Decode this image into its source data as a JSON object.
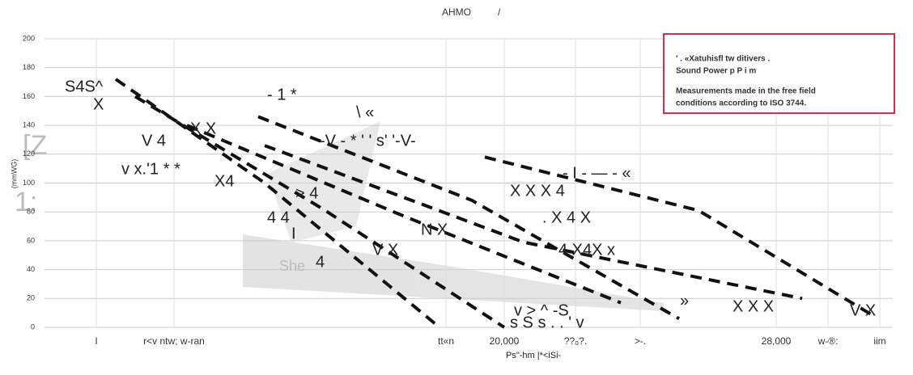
{
  "chart_data": {
    "type": "line",
    "title": "AHMO",
    "subtitle": "/",
    "y_label": "(mmWG)",
    "side_labels": [
      "[Z",
      "1:"
    ],
    "box_lines": [
      "' . «Xatuhisfl tw ditivers .",
      "Sound Power p P i m",
      "Measurements made in the free field",
      "conditions according to ISO 3744."
    ],
    "annotations": [
      "S4S^",
      "X",
      "V 4",
      "X X",
      "v x.'1 * *",
      "X4",
      "> 4",
      "4 4",
      "She",
      "4",
      "V X",
      "N X",
      "X X X 4",
      ". X 4 X",
      "4 X4X x",
      "- I - — - «",
      "v > ^ -S",
      "s S s . . ' v",
      "X X X",
      "V X",
      "-V - * ' ' s' '-V-",
      "\\ «",
      "- 1 *",
      "I",
      "Ps\"-hm |*<iSi-",
      "»"
    ],
    "xlim": [
      0,
      13.1
    ],
    "xticks": [
      {
        "value": 0.8,
        "label": "I"
      },
      {
        "value": 2,
        "label": "r<v ntw; w-ran"
      },
      {
        "value": 6.2,
        "label": "tt«n"
      },
      {
        "value": 7.1,
        "label": "20,000"
      },
      {
        "value": 8.2,
        "label": "??₀?."
      },
      {
        "value": 9.2,
        "label": ">-."
      },
      {
        "value": 11.3,
        "label": "28,000"
      },
      {
        "value": 12.1,
        "label": "w-®:"
      },
      {
        "value": 12.9,
        "label": "iim"
      }
    ],
    "ylim": [
      0,
      200
    ],
    "yticks": [
      0,
      20,
      40,
      60,
      80,
      100,
      120,
      140,
      160,
      180,
      200
    ],
    "grid": true,
    "line_style": "dashed",
    "series": [
      {
        "color": "#111",
        "x": [
          1.1,
          3.4,
          6.1
        ],
        "values": [
          172,
          100,
          0
        ]
      },
      {
        "color": "#111",
        "x": [
          1.4,
          4.3,
          7.1
        ],
        "values": [
          160,
          82,
          0
        ]
      },
      {
        "color": "#111",
        "x": [
          2.2,
          5.5,
          8.9
        ],
        "values": [
          140,
          78,
          17
        ]
      },
      {
        "color": "#111",
        "x": [
          3.3,
          6.6,
          9.8
        ],
        "values": [
          146,
          88,
          6
        ]
      },
      {
        "color": "#111",
        "x": [
          3.4,
          7.4,
          11.7
        ],
        "values": [
          126,
          59,
          20
        ]
      },
      {
        "color": "#111",
        "x": [
          6.8,
          10.1,
          12.8
        ],
        "values": [
          118,
          81,
          8
        ]
      }
    ]
  }
}
